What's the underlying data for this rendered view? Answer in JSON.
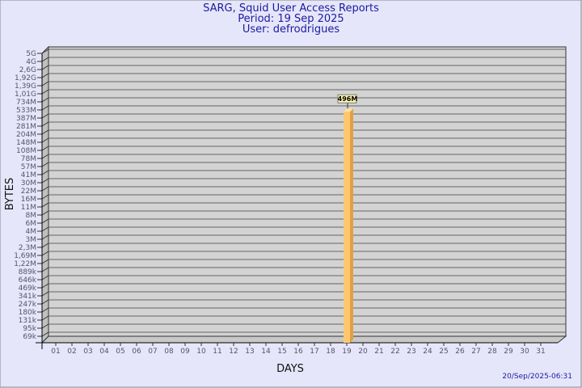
{
  "header": {
    "title": "SARG, Squid User Access Reports",
    "period": "Period: 19 Sep 2025",
    "user": "User: defrodrigues"
  },
  "footer": {
    "timestamp": "20/Sep/2025-06:31"
  },
  "colors": {
    "background": "#e6e6fa",
    "plot": "#d3d3d3",
    "bar": "#ffc870",
    "bar_side": "#e0a040",
    "title": "#1a1aa0"
  },
  "chart_data": {
    "type": "bar",
    "xlabel": "DAYS",
    "ylabel": "BYTES",
    "y_scale": "log",
    "y_ticks": [
      "5G",
      "4G",
      "2,6G",
      "1,92G",
      "1,39G",
      "1,01G",
      "734M",
      "533M",
      "387M",
      "281M",
      "204M",
      "148M",
      "108M",
      "78M",
      "57M",
      "41M",
      "30M",
      "22M",
      "16M",
      "11M",
      "8M",
      "6M",
      "4M",
      "3M",
      "2,3M",
      "1,69M",
      "1,22M",
      "889k",
      "646k",
      "469k",
      "341k",
      "247k",
      "180k",
      "131k",
      "95k",
      "69k"
    ],
    "categories": [
      "01",
      "02",
      "03",
      "04",
      "05",
      "06",
      "07",
      "08",
      "09",
      "10",
      "11",
      "12",
      "13",
      "14",
      "15",
      "16",
      "17",
      "18",
      "19",
      "20",
      "21",
      "22",
      "23",
      "24",
      "25",
      "26",
      "27",
      "28",
      "29",
      "30",
      "31"
    ],
    "bars": [
      {
        "day": "19",
        "value": "496M"
      }
    ],
    "grid": true
  }
}
